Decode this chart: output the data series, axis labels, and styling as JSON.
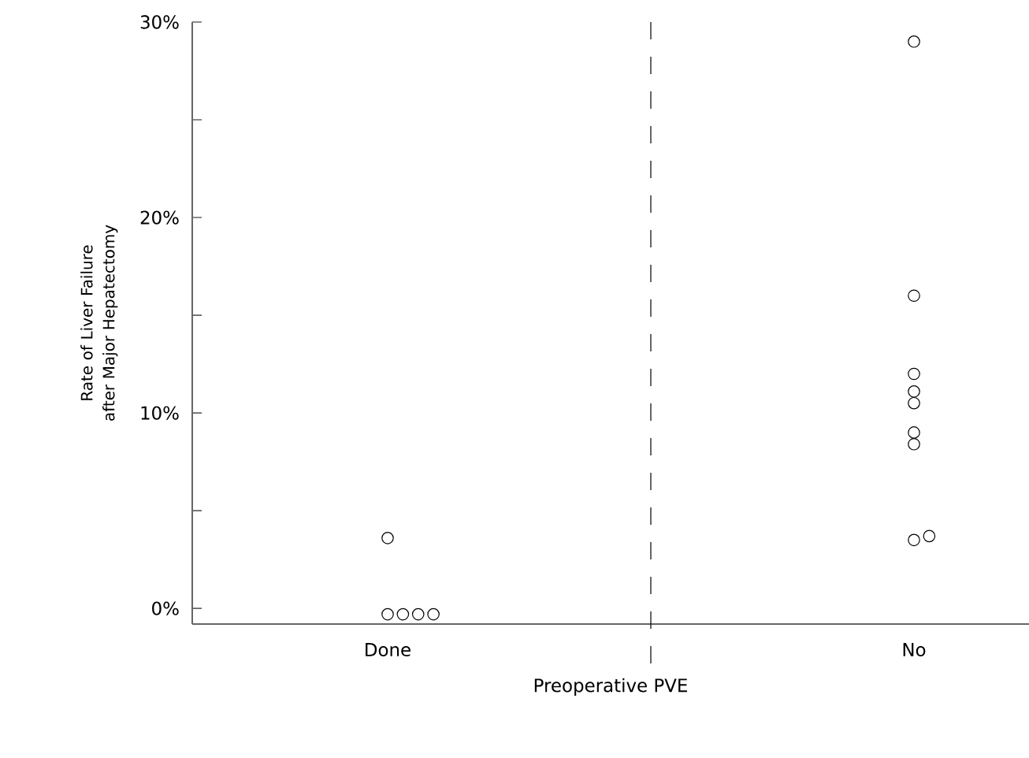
{
  "chart_data": {
    "type": "scatter",
    "xlabel": "Preoperative PVE",
    "ylabel": "Rate of Liver Failure after Major Hepatectomy",
    "categories": [
      "Done",
      "No"
    ],
    "series": [
      {
        "color": "#000000",
        "x": [
          "Done",
          "Done",
          "Done",
          "Done",
          "Done",
          "No",
          "No",
          "No",
          "No",
          "No",
          "No",
          "No",
          "No",
          "No"
        ],
        "values": [
          3.6,
          -0.3,
          -0.3,
          -0.3,
          -0.3,
          29.0,
          16.0,
          12.0,
          11.1,
          10.5,
          9.0,
          8.4,
          3.5,
          3.7
        ]
      }
    ],
    "ylim": [
      -0.8,
      30
    ],
    "yticks": [
      {
        "value": 0,
        "label": "0%"
      },
      {
        "value": 5,
        "label": null
      },
      {
        "value": 10,
        "label": "10%"
      },
      {
        "value": 15,
        "label": null
      },
      {
        "value": 20,
        "label": "20%"
      },
      {
        "value": 25,
        "label": null
      },
      {
        "value": 30,
        "label": "30%"
      }
    ],
    "marker": "circle"
  }
}
